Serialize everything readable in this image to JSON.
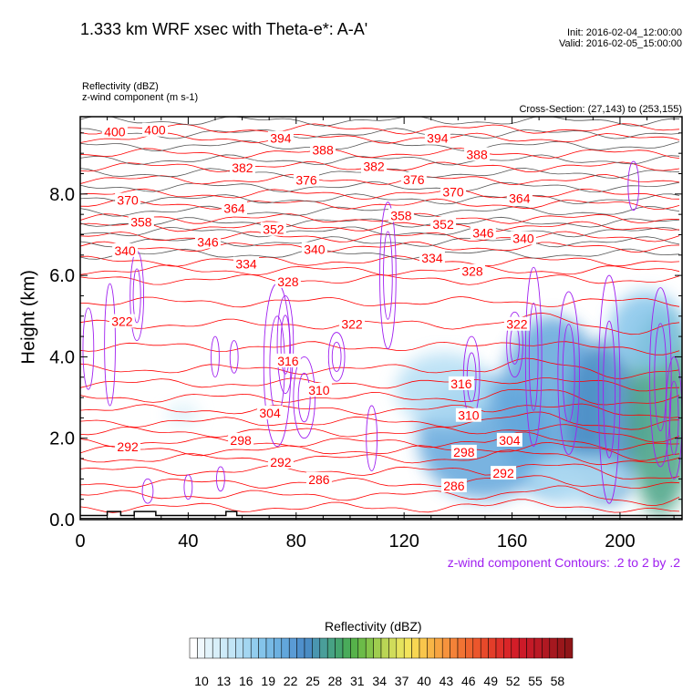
{
  "header": {
    "title": "1.333 km WRF xsec with Theta-e*: A-A'",
    "init": "Init: 2016-02-04_12:00:00",
    "valid": "Valid: 2016-02-05_15:00:00",
    "field1": "Reflectivity   (dBZ)",
    "field2": "z-wind component   (m s-1)",
    "cross_section": "Cross-Section: (27,143) to (253,155)"
  },
  "chart_data": {
    "type": "contour",
    "title": "1.333 km WRF xsec with Theta-e*: A-A'",
    "xlabel": "",
    "ylabel": "Height (km)",
    "xlim": [
      0,
      223
    ],
    "ylim": [
      0,
      9.9
    ],
    "x_ticks": [
      "0",
      "40",
      "80",
      "120",
      "160",
      "200"
    ],
    "x_tick_values": [
      0,
      40,
      80,
      120,
      160,
      200
    ],
    "y_ticks": [
      "0.0",
      "2.0",
      "4.0",
      "6.0",
      "8.0"
    ],
    "y_tick_values": [
      0,
      2,
      4,
      6,
      8
    ],
    "theta_e_levels": {
      "min": 280,
      "max": 403,
      "step": 3
    },
    "theta_e_profile": [
      [
        280,
        0.3
      ],
      [
        286,
        0.9
      ],
      [
        292,
        1.5
      ],
      [
        298,
        1.9
      ],
      [
        304,
        2.4
      ],
      [
        310,
        3.0
      ],
      [
        316,
        3.7
      ],
      [
        322,
        4.8
      ],
      [
        328,
        5.9
      ],
      [
        334,
        6.35
      ],
      [
        340,
        6.7
      ],
      [
        346,
        6.95
      ],
      [
        352,
        7.2
      ],
      [
        358,
        7.4
      ],
      [
        364,
        7.75
      ],
      [
        370,
        8.0
      ],
      [
        376,
        8.35
      ],
      [
        382,
        8.67
      ],
      [
        388,
        9.0
      ],
      [
        394,
        9.37
      ],
      [
        400,
        9.6
      ],
      [
        403,
        9.8
      ]
    ],
    "contour_labels": [
      {
        "v": "400",
        "x": 12.8,
        "h": 9.53
      },
      {
        "v": "400",
        "x": 27.7,
        "h": 9.57
      },
      {
        "v": "394",
        "x": 74.3,
        "h": 9.37
      },
      {
        "v": "388",
        "x": 89.9,
        "h": 9.08
      },
      {
        "v": "382",
        "x": 60.1,
        "h": 8.65
      },
      {
        "v": "376",
        "x": 83.8,
        "h": 8.34
      },
      {
        "v": "370",
        "x": 17.6,
        "h": 7.85
      },
      {
        "v": "364",
        "x": 57.1,
        "h": 7.65
      },
      {
        "v": "358",
        "x": 22.6,
        "h": 7.31
      },
      {
        "v": "352",
        "x": 71.6,
        "h": 7.13
      },
      {
        "v": "346",
        "x": 47.3,
        "h": 6.82
      },
      {
        "v": "340",
        "x": 16.6,
        "h": 6.61
      },
      {
        "v": "340",
        "x": 86.8,
        "h": 6.64
      },
      {
        "v": "334",
        "x": 61.5,
        "h": 6.28
      },
      {
        "v": "328",
        "x": 77.0,
        "h": 5.85
      },
      {
        "v": "322",
        "x": 15.5,
        "h": 4.87
      },
      {
        "v": "322",
        "x": 100.7,
        "h": 4.8
      },
      {
        "v": "316",
        "x": 77.0,
        "h": 3.9
      },
      {
        "v": "310",
        "x": 88.5,
        "h": 3.18
      },
      {
        "v": "304",
        "x": 70.3,
        "h": 2.62
      },
      {
        "v": "298",
        "x": 59.5,
        "h": 1.95
      },
      {
        "v": "292",
        "x": 17.6,
        "h": 1.79
      },
      {
        "v": "292",
        "x": 74.3,
        "h": 1.41
      },
      {
        "v": "286",
        "x": 88.5,
        "h": 0.99
      },
      {
        "v": "394",
        "x": 132.4,
        "h": 9.37
      },
      {
        "v": "388",
        "x": 147.0,
        "h": 8.97
      },
      {
        "v": "382",
        "x": 108.8,
        "h": 8.68
      },
      {
        "v": "376",
        "x": 123.6,
        "h": 8.36
      },
      {
        "v": "370",
        "x": 138.2,
        "h": 8.05
      },
      {
        "v": "364",
        "x": 162.8,
        "h": 7.89
      },
      {
        "v": "358",
        "x": 118.9,
        "h": 7.47
      },
      {
        "v": "352",
        "x": 134.5,
        "h": 7.26
      },
      {
        "v": "346",
        "x": 149.3,
        "h": 7.04
      },
      {
        "v": "340",
        "x": 164.2,
        "h": 6.91
      },
      {
        "v": "334",
        "x": 130.4,
        "h": 6.43
      },
      {
        "v": "328",
        "x": 145.3,
        "h": 6.1
      },
      {
        "v": "322",
        "x": 161.8,
        "h": 4.8
      },
      {
        "v": "316",
        "x": 141.2,
        "h": 3.34
      },
      {
        "v": "310",
        "x": 143.9,
        "h": 2.56
      },
      {
        "v": "304",
        "x": 159.1,
        "h": 1.95
      },
      {
        "v": "298",
        "x": 142.2,
        "h": 1.66
      },
      {
        "v": "292",
        "x": 156.8,
        "h": 1.14
      },
      {
        "v": "286",
        "x": 138.5,
        "h": 0.83
      }
    ],
    "reflectivity_cells": [
      {
        "x": 150,
        "h": 2.0,
        "rx": 25,
        "rh": 1.5,
        "dbz": 22
      },
      {
        "x": 135,
        "h": 3.2,
        "rx": 18,
        "rh": 0.9,
        "dbz": 16
      },
      {
        "x": 175,
        "h": 2.8,
        "rx": 20,
        "rh": 2.2,
        "dbz": 22
      },
      {
        "x": 195,
        "h": 2.4,
        "rx": 15,
        "rh": 2.0,
        "dbz": 25
      },
      {
        "x": 215,
        "h": 2.6,
        "rx": 12,
        "rh": 2.5,
        "dbz": 28
      },
      {
        "x": 210,
        "h": 4.6,
        "rx": 14,
        "rh": 1.0,
        "dbz": 19
      },
      {
        "x": 185,
        "h": 1.0,
        "rx": 20,
        "rh": 0.6,
        "dbz": 16
      },
      {
        "x": 38,
        "h": 2.6,
        "rx": 6,
        "rh": 0.25,
        "dbz": 13
      }
    ],
    "w_contours_note": "z-wind component Contours: .2 to 2 by .2",
    "w_contours": [
      {
        "x": 3,
        "h": 4.2,
        "rx": 2,
        "rh": 1.0
      },
      {
        "x": 11,
        "h": 4.3,
        "rx": 2,
        "rh": 1.5
      },
      {
        "x": 21,
        "h": 5.5,
        "rx": 2.5,
        "rh": 1.1
      },
      {
        "x": 25,
        "h": 0.7,
        "rx": 2,
        "rh": 0.3
      },
      {
        "x": 50,
        "h": 4.0,
        "rx": 1.5,
        "rh": 0.5
      },
      {
        "x": 57,
        "h": 4.0,
        "rx": 1.5,
        "rh": 0.4
      },
      {
        "x": 73,
        "h": 3.8,
        "rx": 5,
        "rh": 2.0
      },
      {
        "x": 76,
        "h": 4.3,
        "rx": 3,
        "rh": 1.2
      },
      {
        "x": 83,
        "h": 3.0,
        "rx": 4,
        "rh": 1.0
      },
      {
        "x": 95,
        "h": 4.0,
        "rx": 3,
        "rh": 0.6
      },
      {
        "x": 108,
        "h": 2.0,
        "rx": 2,
        "rh": 0.8
      },
      {
        "x": 114,
        "h": 6.0,
        "rx": 3,
        "rh": 1.8
      },
      {
        "x": 145,
        "h": 3.5,
        "rx": 3,
        "rh": 1.0
      },
      {
        "x": 161,
        "h": 4.3,
        "rx": 3,
        "rh": 0.8
      },
      {
        "x": 168,
        "h": 4.0,
        "rx": 3,
        "rh": 2.2
      },
      {
        "x": 181,
        "h": 3.6,
        "rx": 4,
        "rh": 2.0
      },
      {
        "x": 196,
        "h": 3.2,
        "rx": 4,
        "rh": 2.8
      },
      {
        "x": 205,
        "h": 8.2,
        "rx": 2,
        "rh": 0.6
      },
      {
        "x": 215,
        "h": 3.5,
        "rx": 4,
        "rh": 2.2
      },
      {
        "x": 220,
        "h": 2.5,
        "rx": 3,
        "rh": 1.5
      },
      {
        "x": 52,
        "h": 1.0,
        "rx": 1.5,
        "rh": 0.3
      },
      {
        "x": 40,
        "h": 0.8,
        "rx": 1.5,
        "rh": 0.3
      }
    ],
    "terrain": [
      [
        0,
        0.1
      ],
      [
        10,
        0.1
      ],
      [
        10,
        0.2
      ],
      [
        15,
        0.2
      ],
      [
        15,
        0.1
      ],
      [
        20,
        0.1
      ],
      [
        20,
        0.2
      ],
      [
        28,
        0.2
      ],
      [
        28,
        0.1
      ],
      [
        54,
        0.1
      ],
      [
        54,
        0.2
      ],
      [
        58,
        0.2
      ],
      [
        58,
        0.1
      ],
      [
        223,
        0.1
      ]
    ],
    "colorbar": {
      "title": "Reflectivity  (dBZ)",
      "labels": [
        "10",
        "13",
        "16",
        "19",
        "22",
        "25",
        "28",
        "31",
        "34",
        "37",
        "40",
        "43",
        "46",
        "49",
        "52",
        "55",
        "58"
      ],
      "colors": [
        "#ffffff",
        "#f0f8fd",
        "#e2f3fb",
        "#d8eff9",
        "#cdeaf8",
        "#c2e5f6",
        "#b4def4",
        "#a3d6f1",
        "#92cdee",
        "#84c4ea",
        "#78bae5",
        "#6cb0e0",
        "#62a6db",
        "#5a9bd5",
        "#4f90cc",
        "#4a8cc4",
        "#4a96b0",
        "#4a9e9a",
        "#47a284",
        "#45a56f",
        "#49ab5a",
        "#56b24a",
        "#6cbb48",
        "#84c44a",
        "#9fcd4f",
        "#bad555",
        "#d0dc5a",
        "#e5e35d",
        "#f3e45b",
        "#f8d652",
        "#f9c64c",
        "#f8b546",
        "#f7a441",
        "#f6933d",
        "#f48238",
        "#f17333",
        "#ee642f",
        "#eb562c",
        "#e7492a",
        "#e33d29",
        "#de3029",
        "#d92528",
        "#d31d28",
        "#cc1a28",
        "#c41a27",
        "#bb1925",
        "#b01922",
        "#a5181f",
        "#9a171b",
        "#8f1518"
      ]
    }
  }
}
